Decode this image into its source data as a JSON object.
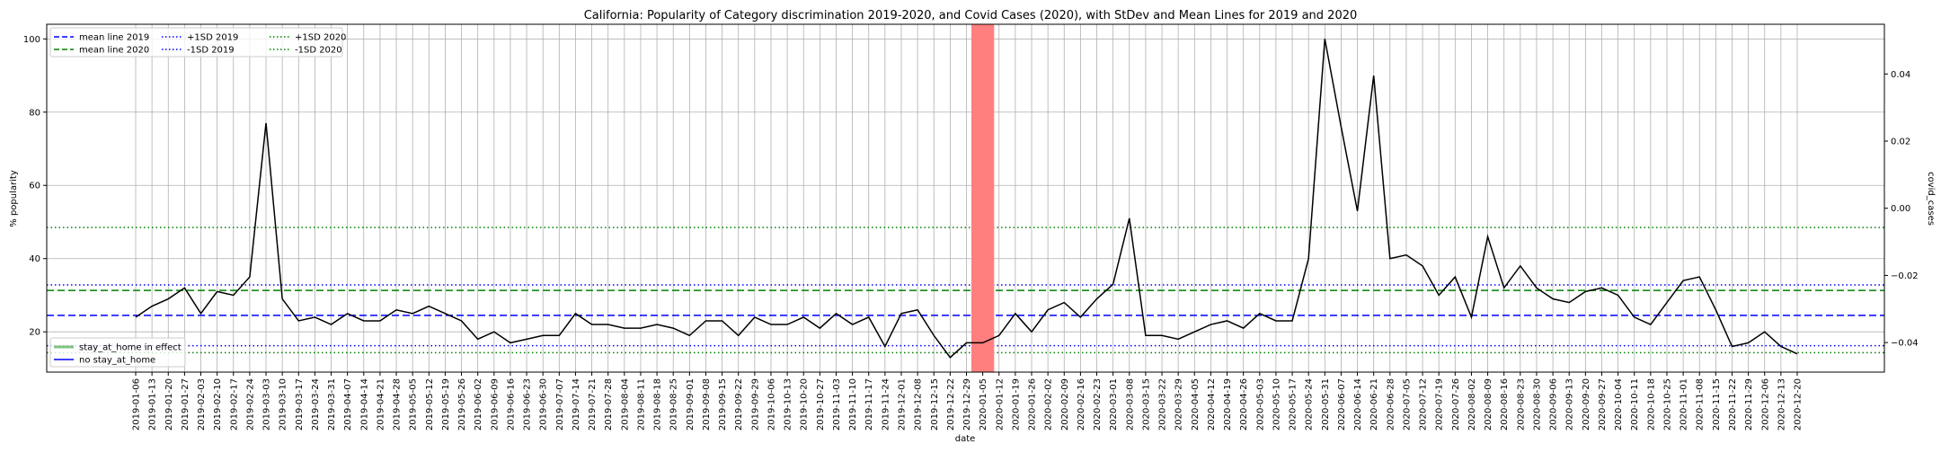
{
  "chart_data": {
    "type": "line",
    "title": "California: Popularity of Category discrimination 2019-2020, and Covid Cases (2020), with StDev and Mean Lines for 2019 and 2020",
    "xlabel": "date",
    "ylabel": "% popularity",
    "y2label": "covid_cases",
    "ylim": [
      9,
      104
    ],
    "y2lim": [
      -0.0488,
      0.0548
    ],
    "yticks": [
      20,
      40,
      60,
      80,
      100
    ],
    "y2ticks": [
      "0.04",
      "0.02",
      "0.00",
      "−0.02",
      "−0.04"
    ],
    "y2tick_values": [
      0.04,
      0.02,
      0.0,
      -0.02,
      -0.04
    ],
    "grid": true,
    "x": [
      "2019-01-06",
      "2019-01-13",
      "2019-01-20",
      "2019-01-27",
      "2019-02-03",
      "2019-02-10",
      "2019-02-17",
      "2019-02-24",
      "2019-03-03",
      "2019-03-10",
      "2019-03-17",
      "2019-03-24",
      "2019-03-31",
      "2019-04-07",
      "2019-04-14",
      "2019-04-21",
      "2019-04-28",
      "2019-05-05",
      "2019-05-12",
      "2019-05-19",
      "2019-05-26",
      "2019-06-02",
      "2019-06-09",
      "2019-06-16",
      "2019-06-23",
      "2019-06-30",
      "2019-07-07",
      "2019-07-14",
      "2019-07-21",
      "2019-07-28",
      "2019-08-04",
      "2019-08-11",
      "2019-08-18",
      "2019-08-25",
      "2019-09-01",
      "2019-09-08",
      "2019-09-15",
      "2019-09-22",
      "2019-09-29",
      "2019-10-06",
      "2019-10-13",
      "2019-10-20",
      "2019-10-27",
      "2019-11-03",
      "2019-11-10",
      "2019-11-17",
      "2019-11-24",
      "2019-12-01",
      "2019-12-08",
      "2019-12-15",
      "2019-12-22",
      "2019-12-29",
      "2020-01-05",
      "2020-01-12",
      "2020-01-19",
      "2020-01-26",
      "2020-02-02",
      "2020-02-09",
      "2020-02-16",
      "2020-02-23",
      "2020-03-01",
      "2020-03-08",
      "2020-03-15",
      "2020-03-22",
      "2020-03-29",
      "2020-04-05",
      "2020-04-12",
      "2020-04-19",
      "2020-04-26",
      "2020-05-03",
      "2020-05-10",
      "2020-05-17",
      "2020-05-24",
      "2020-05-31",
      "2020-06-07",
      "2020-06-14",
      "2020-06-21",
      "2020-06-28",
      "2020-07-05",
      "2020-07-12",
      "2020-07-19",
      "2020-07-26",
      "2020-08-02",
      "2020-08-09",
      "2020-08-16",
      "2020-08-23",
      "2020-08-30",
      "2020-09-06",
      "2020-09-13",
      "2020-09-20",
      "2020-09-27",
      "2020-10-04",
      "2020-10-11",
      "2020-10-18",
      "2020-10-25",
      "2020-11-01",
      "2020-11-08",
      "2020-11-15",
      "2020-11-22",
      "2020-11-29",
      "2020-12-06",
      "2020-12-13",
      "2020-12-20"
    ],
    "series": [
      {
        "values": [
          24,
          27,
          29,
          32,
          25,
          31,
          30,
          35,
          77,
          29,
          23,
          24,
          22,
          25,
          23,
          23,
          26,
          25,
          27,
          25,
          23,
          18,
          20,
          17,
          18,
          19,
          19,
          25,
          22,
          22,
          21,
          21,
          22,
          21,
          19,
          23,
          23,
          19,
          24,
          22,
          22,
          24,
          21,
          25,
          22,
          24,
          16,
          25,
          26,
          19,
          13,
          17,
          17,
          19,
          25,
          20,
          26,
          28,
          24,
          29,
          33,
          51,
          19,
          19,
          18,
          20,
          22,
          23,
          21,
          25,
          23,
          23,
          40,
          100,
          76,
          53,
          90,
          40,
          41,
          38,
          30,
          35,
          24,
          46,
          32,
          38,
          32,
          29,
          28,
          31,
          32,
          30,
          24,
          22,
          28,
          34,
          35,
          26,
          16,
          17,
          20,
          16,
          14
        ],
        "color": "#000000"
      }
    ],
    "reference_lines": [
      {
        "name": "mean line 2019",
        "value": 24.5,
        "color": "#0000ff",
        "style": "dashed"
      },
      {
        "name": "mean line 2020",
        "value": 31.3,
        "color": "#008000",
        "style": "dashed"
      },
      {
        "name": "+1SD 2019",
        "value": 32.8,
        "color": "#0000ff",
        "style": "dotted"
      },
      {
        "name": "-1SD 2019",
        "value": 16.2,
        "color": "#0000ff",
        "style": "dotted"
      },
      {
        "name": "+1SD 2020",
        "value": 48.5,
        "color": "#008000",
        "style": "dotted"
      },
      {
        "name": "-1SD 2020",
        "value": 14.3,
        "color": "#008000",
        "style": "dotted"
      }
    ],
    "shaded_span": {
      "from_index": 51.3,
      "to_index": 52.7,
      "color": "#ff7f7f"
    },
    "legend_top": {
      "placement": "top-left",
      "entries": [
        "mean line 2019",
        "mean line 2020",
        "+1SD 2019",
        "-1SD 2019",
        "+1SD 2020",
        "-1SD 2020"
      ]
    },
    "legend_bottom": {
      "placement": "bottom-left",
      "entries": [
        {
          "label": "stay_at_home in effect",
          "color": "#2ca02c"
        },
        {
          "label": "no stay_at_home",
          "color": "#0000ff"
        }
      ]
    }
  }
}
